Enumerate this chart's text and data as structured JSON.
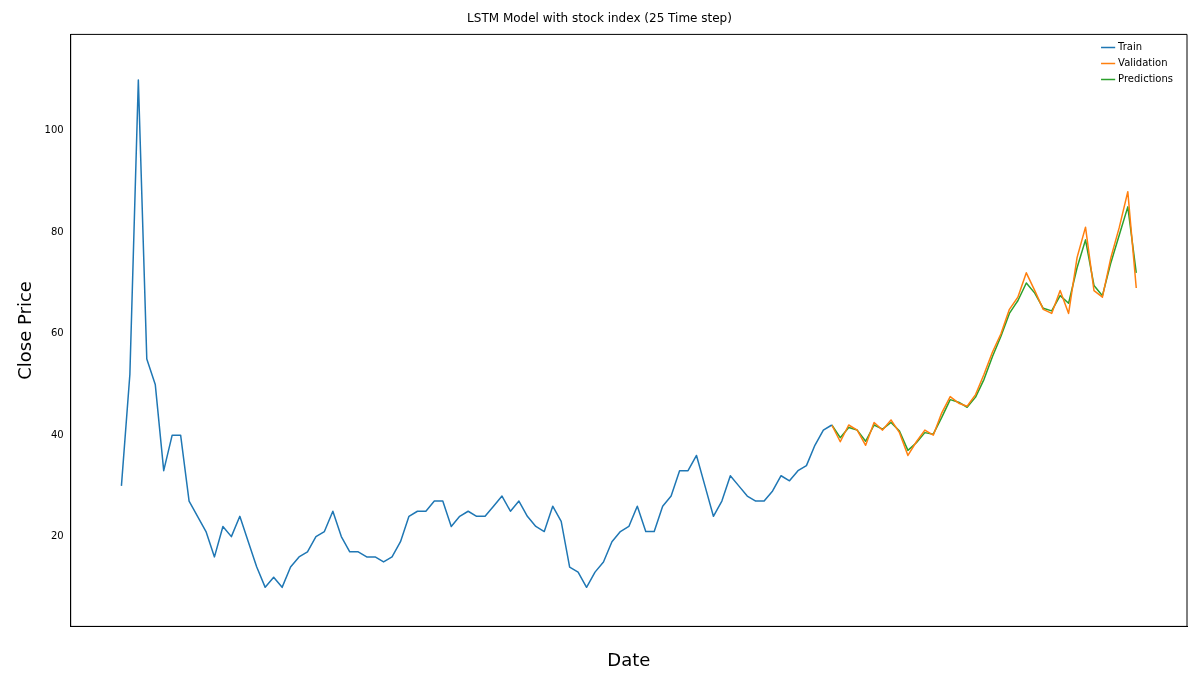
{
  "chart_data": {
    "type": "line",
    "title": "LSTM Model with stock index (25 Time step)",
    "xlabel": "Date",
    "ylabel": "Close Price",
    "categories": [
      null,
      null,
      null,
      null,
      null,
      null,
      null,
      null,
      null,
      null,
      null,
      null,
      null,
      null,
      null,
      null,
      null,
      null,
      null,
      null,
      null,
      null,
      null,
      null,
      null,
      null,
      null,
      null,
      null,
      null,
      null,
      null,
      null,
      null,
      null,
      null,
      null,
      null,
      null,
      null,
      null,
      null,
      null,
      null,
      null,
      null,
      null,
      null,
      null,
      null,
      null,
      null,
      null,
      null,
      null,
      null,
      null,
      null,
      null,
      null,
      null,
      null,
      null,
      null,
      null,
      null,
      null,
      null,
      null,
      null,
      null,
      null,
      null,
      null,
      null,
      null,
      null,
      null,
      null,
      null,
      null,
      null,
      null,
      null,
      null,
      null,
      null,
      null,
      null,
      null,
      null,
      null,
      null,
      null,
      null,
      null,
      null,
      null,
      null,
      null,
      null,
      null,
      null,
      null,
      null,
      null,
      null,
      null,
      null,
      null,
      null,
      null,
      null,
      null,
      null,
      null,
      null,
      null,
      null,
      null,
      null
    ],
    "series": [
      {
        "name": "Train",
        "color": "#1f77b4",
        "values": [
          30,
          52,
          110,
          55,
          50,
          33,
          40,
          40,
          27,
          24,
          21,
          16,
          22,
          20,
          24,
          19,
          14,
          10,
          12,
          10,
          14,
          16,
          17,
          20,
          21,
          25,
          20,
          17,
          17,
          16,
          16,
          15,
          16,
          19,
          24,
          25,
          25,
          27,
          27,
          22,
          24,
          25,
          24,
          24,
          26,
          28,
          25,
          27,
          24,
          22,
          21,
          26,
          23,
          14,
          13,
          10,
          13,
          15,
          19,
          21,
          22,
          26,
          21,
          21,
          26,
          28,
          33,
          33,
          36,
          30,
          24,
          27,
          32,
          30,
          28,
          27,
          27,
          29,
          32,
          31,
          33,
          34,
          38,
          41,
          42,
          null,
          null,
          null,
          null,
          null,
          null,
          null,
          null,
          null,
          null,
          null,
          null,
          null,
          null,
          null,
          null,
          null,
          null,
          null,
          null,
          null,
          null,
          null,
          null,
          null,
          null,
          null,
          null,
          null,
          null,
          null,
          null,
          null,
          null,
          null,
          null
        ]
      },
      {
        "name": "Validation",
        "color": "#ff7f0e",
        "values": [
          null,
          null,
          null,
          null,
          null,
          null,
          null,
          null,
          null,
          null,
          null,
          null,
          null,
          null,
          null,
          null,
          null,
          null,
          null,
          null,
          null,
          null,
          null,
          null,
          null,
          null,
          null,
          null,
          null,
          null,
          null,
          null,
          null,
          null,
          null,
          null,
          null,
          null,
          null,
          null,
          null,
          null,
          null,
          null,
          null,
          null,
          null,
          null,
          null,
          null,
          null,
          null,
          null,
          null,
          null,
          null,
          null,
          null,
          null,
          null,
          null,
          null,
          null,
          null,
          null,
          null,
          null,
          null,
          null,
          null,
          null,
          null,
          null,
          null,
          null,
          null,
          null,
          null,
          null,
          null,
          null,
          null,
          null,
          null,
          42,
          38.7,
          42,
          41,
          38,
          42.5,
          41,
          43,
          40.5,
          36,
          38.7,
          41,
          40,
          44.4,
          47.6,
          46.3,
          45.7,
          48,
          52,
          56.4,
          60,
          64.8,
          67.2,
          72,
          68.5,
          64.8,
          64,
          68.5,
          64,
          75,
          81,
          68.5,
          67.2,
          75,
          81,
          88,
          69
        ]
      },
      {
        "name": "Predictions",
        "color": "#2ca02c",
        "values": [
          null,
          null,
          null,
          null,
          null,
          null,
          null,
          null,
          null,
          null,
          null,
          null,
          null,
          null,
          null,
          null,
          null,
          null,
          null,
          null,
          null,
          null,
          null,
          null,
          null,
          null,
          null,
          null,
          null,
          null,
          null,
          null,
          null,
          null,
          null,
          null,
          null,
          null,
          null,
          null,
          null,
          null,
          null,
          null,
          null,
          null,
          null,
          null,
          null,
          null,
          null,
          null,
          null,
          null,
          null,
          null,
          null,
          null,
          null,
          null,
          null,
          null,
          null,
          null,
          null,
          null,
          null,
          null,
          null,
          null,
          null,
          null,
          null,
          null,
          null,
          null,
          null,
          null,
          null,
          null,
          null,
          null,
          null,
          null,
          42,
          39.5,
          41.5,
          41,
          38.8,
          42,
          41.2,
          42.5,
          40.8,
          37,
          38.5,
          40.5,
          40.2,
          43.5,
          47,
          46.5,
          45.5,
          47.5,
          51,
          55.5,
          59.5,
          64,
          66.5,
          70,
          68,
          65,
          64.5,
          67.5,
          66,
          73,
          78.5,
          69.5,
          67.5,
          74,
          79.5,
          85,
          72
        ]
      }
    ],
    "ylim": [
      2.3,
      119
    ],
    "yticks": [
      20,
      40,
      60,
      80,
      100
    ],
    "grid": false,
    "legend": "top right",
    "tick_labels": "y"
  }
}
